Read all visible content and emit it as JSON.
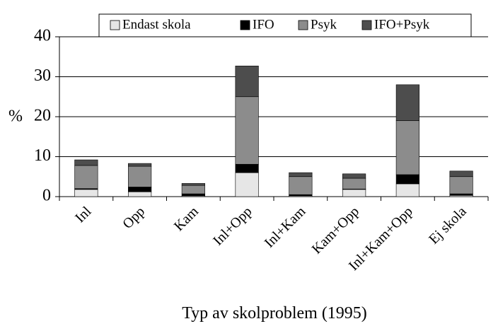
{
  "chart_data": {
    "type": "stacked_bar",
    "ylabel": "%",
    "xlabel": "Typ av skolproblem (1995)",
    "categories": [
      "Inl",
      "Opp",
      "Kam",
      "Inl+Opp",
      "Inl+Kam",
      "Kam+Opp",
      "Inl+Kam+Opp",
      "Ej skola"
    ],
    "series": [
      {
        "name": "Endast skola",
        "color": "#e6e6e6",
        "values": [
          1.8,
          1.2,
          0.2,
          6.0,
          0.2,
          1.8,
          3.2,
          0.3
        ]
      },
      {
        "name": "IFO",
        "color": "#000000",
        "values": [
          0.2,
          1.2,
          0.5,
          2.1,
          0.3,
          0.1,
          2.3,
          0.4
        ]
      },
      {
        "name": "Psyk",
        "color": "#8c8c8c",
        "values": [
          5.8,
          5.2,
          2.1,
          16.9,
          4.5,
          2.7,
          13.5,
          4.3
        ]
      },
      {
        "name": "IFO+Psyk",
        "color": "#4d4d4d",
        "values": [
          1.4,
          0.7,
          0.5,
          7.7,
          1.0,
          1.1,
          9.0,
          1.4
        ]
      }
    ],
    "ylim": [
      0,
      40
    ],
    "yticks": [
      0,
      10,
      20,
      30,
      40
    ],
    "grid": true,
    "legend": "top"
  }
}
